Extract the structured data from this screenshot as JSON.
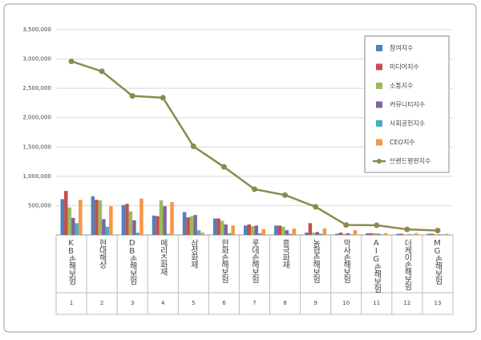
{
  "chart_data": {
    "type": "bar",
    "categories": [
      "KB손해보험",
      "현대해상",
      "DB손해보험",
      "메리츠화재",
      "삼성화재",
      "한화손해보험",
      "롯데손해보험",
      "흥국화재",
      "농협손해보험",
      "악사손해보험",
      "AIG손해보험",
      "더케이손해보험",
      "MG손해보험"
    ],
    "ranks": [
      1,
      2,
      3,
      4,
      5,
      6,
      7,
      8,
      9,
      10,
      11,
      12,
      13
    ],
    "series": [
      {
        "name": "참여지수",
        "color": "#4f81bd",
        "type": "bar",
        "values": [
          610000,
          660000,
          510000,
          330000,
          390000,
          280000,
          160000,
          160000,
          40000,
          20000,
          30000,
          20000,
          20000
        ]
      },
      {
        "name": "미디어지수",
        "color": "#c0504d",
        "type": "bar",
        "values": [
          750000,
          600000,
          530000,
          320000,
          300000,
          280000,
          180000,
          160000,
          200000,
          40000,
          30000,
          20000,
          20000
        ]
      },
      {
        "name": "소통지수",
        "color": "#9bbb59",
        "type": "bar",
        "values": [
          470000,
          590000,
          400000,
          590000,
          320000,
          240000,
          150000,
          140000,
          40000,
          20000,
          30000,
          10000,
          10000
        ]
      },
      {
        "name": "커뮤니티지수",
        "color": "#8064a2",
        "type": "bar",
        "values": [
          290000,
          270000,
          250000,
          490000,
          340000,
          180000,
          160000,
          80000,
          50000,
          30000,
          20000,
          10000,
          10000
        ]
      },
      {
        "name": "사회공헌지수",
        "color": "#4bacc6",
        "type": "bar",
        "values": [
          200000,
          140000,
          40000,
          20000,
          80000,
          30000,
          30000,
          20000,
          20000,
          10000,
          10000,
          10000,
          10000
        ]
      },
      {
        "name": "CEO지수",
        "color": "#f79646",
        "type": "bar",
        "values": [
          600000,
          490000,
          620000,
          560000,
          40000,
          160000,
          100000,
          110000,
          110000,
          80000,
          30000,
          30000,
          20000
        ]
      },
      {
        "name": "브랜드평판지수",
        "color": "#8c8a4e",
        "type": "line",
        "values": [
          2960000,
          2790000,
          2370000,
          2340000,
          1510000,
          1160000,
          780000,
          680000,
          480000,
          170000,
          165000,
          95000,
          75000
        ]
      }
    ],
    "ylim": [
      0,
      3500000
    ],
    "yticks": [
      {
        "value": 500000,
        "label": "500,000"
      },
      {
        "value": 1000000,
        "label": "1,000,000"
      },
      {
        "value": 1500000,
        "label": "1,500,000"
      },
      {
        "value": 2000000,
        "label": "2,000,000"
      },
      {
        "value": 2500000,
        "label": "2,500,000"
      },
      {
        "value": 3000000,
        "label": "3,000,000"
      },
      {
        "value": 3500000,
        "label": "3,500,000"
      }
    ],
    "grid": true
  }
}
